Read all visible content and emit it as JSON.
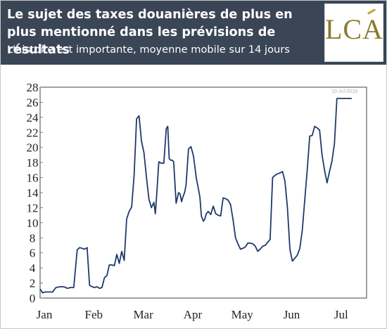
{
  "header": {
    "title": "Le sujet des taxes douanières de plus en plus mentionné dans les prévisions de résultats",
    "subtitle": "L'histoire est importante, moyenne mobile sur 14 jours",
    "logo_text": "LCA"
  },
  "colors": {
    "header_bg": "#3a4556",
    "line": "#1f3a6a",
    "logo_text": "#8a7a2c",
    "logo_accent": "#c9a227"
  },
  "chart_data": {
    "type": "line",
    "title": "",
    "xlabel": "",
    "ylabel": "",
    "watermark": "10-Jul-2018",
    "ylim": [
      0,
      28
    ],
    "yticks": [
      0,
      2,
      4,
      6,
      8,
      10,
      12,
      14,
      16,
      18,
      20,
      22,
      24,
      26,
      28
    ],
    "xlim": [
      0,
      6.6
    ],
    "xticks": [
      {
        "label": "Jan",
        "value": 0.0
      },
      {
        "label": "Feb",
        "value": 1.0
      },
      {
        "label": "Mar",
        "value": 2.0
      },
      {
        "label": "Apr",
        "value": 3.0
      },
      {
        "label": "May",
        "value": 4.0
      },
      {
        "label": "Jun",
        "value": 5.0
      },
      {
        "label": "Jul",
        "value": 6.0
      }
    ],
    "grid": false,
    "series": [
      {
        "x": [
          0.0,
          0.05,
          0.1,
          0.17,
          0.25,
          0.32,
          0.4,
          0.48,
          0.55,
          0.62,
          0.68,
          0.75,
          0.8,
          0.85,
          0.9,
          0.95,
          1.0,
          1.05,
          1.1,
          1.15,
          1.2,
          1.25,
          1.3,
          1.35,
          1.4,
          1.45,
          1.5,
          1.55,
          1.6,
          1.65,
          1.7,
          1.75,
          1.8,
          1.85,
          1.9,
          1.95,
          2.0,
          2.05,
          2.1,
          2.15,
          2.2,
          2.25,
          2.3,
          2.33,
          2.36,
          2.4,
          2.45,
          2.5,
          2.55,
          2.58,
          2.61,
          2.64,
          2.67,
          2.7,
          2.75,
          2.8,
          2.83,
          2.86,
          2.89,
          2.92,
          2.95,
          3.0,
          3.05,
          3.1,
          3.13,
          3.16,
          3.2,
          3.23,
          3.26,
          3.3,
          3.33,
          3.36,
          3.4,
          3.45,
          3.5,
          3.55,
          3.6,
          3.65,
          3.7,
          3.75,
          3.8,
          3.85,
          3.9,
          3.95,
          4.0,
          4.05,
          4.1,
          4.15,
          4.2,
          4.25,
          4.3,
          4.35,
          4.4,
          4.45,
          4.5,
          4.55,
          4.6,
          4.65,
          4.7,
          4.75,
          4.8,
          4.85,
          4.9,
          4.95,
          5.0,
          5.05,
          5.1,
          5.15,
          5.2,
          5.25,
          5.3,
          5.35,
          5.4,
          5.45,
          5.5,
          5.55,
          5.6,
          5.65,
          5.7,
          5.75,
          5.8,
          5.85,
          5.9,
          5.95,
          6.0,
          6.05,
          6.1,
          6.15,
          6.2,
          6.25,
          6.3,
          6.35,
          6.4,
          6.45
        ],
        "y": [
          1.2,
          0.7,
          0.8,
          0.8,
          0.8,
          1.4,
          1.5,
          1.5,
          1.3,
          1.4,
          1.4,
          6.4,
          6.7,
          6.6,
          6.5,
          6.7,
          1.7,
          1.5,
          1.4,
          1.5,
          1.3,
          1.4,
          2.7,
          3.0,
          4.4,
          4.4,
          4.3,
          5.8,
          4.6,
          6.2,
          5.0,
          10.5,
          11.5,
          12.1,
          16.3,
          23.8,
          24.2,
          20.8,
          19.3,
          16.0,
          13.1,
          12.0,
          12.7,
          11.2,
          14.0,
          18.1,
          17.9,
          17.9,
          22.5,
          22.8,
          18.5,
          18.3,
          18.3,
          18.1,
          12.6,
          14.0,
          13.8,
          12.8,
          13.5,
          14.0,
          15.0,
          19.8,
          20.1,
          18.9,
          17.4,
          15.8,
          14.5,
          13.4,
          10.9,
          10.2,
          10.5,
          11.2,
          11.5,
          11.1,
          12.2,
          11.2,
          11.0,
          10.9,
          13.3,
          13.2,
          13.0,
          12.4,
          10.4,
          8.0,
          7.2,
          6.5,
          6.6,
          6.8,
          7.3,
          7.3,
          7.2,
          6.9,
          6.2,
          6.5,
          6.9,
          7.0,
          7.4,
          7.8,
          16.0,
          16.3,
          16.5,
          16.6,
          16.8,
          15.5,
          12.0,
          6.5,
          4.9,
          5.3,
          5.7,
          6.6,
          9.0,
          13.0,
          17.0,
          21.5,
          21.6,
          22.8,
          22.6,
          22.3,
          19.0,
          17.0,
          15.3,
          16.8,
          18.2,
          20.5,
          26.5,
          26.5,
          26.5,
          26.5,
          26.5,
          26.5,
          26.5,
          26.5,
          26.5,
          26.5
        ]
      }
    ]
  }
}
